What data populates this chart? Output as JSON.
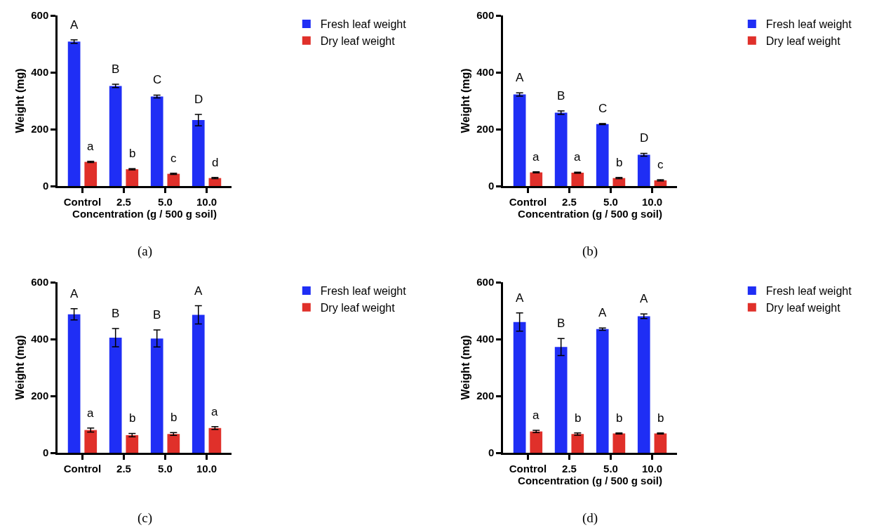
{
  "chart_data": [
    {
      "type": "bar",
      "categories": [
        "Control",
        "2.5",
        "5.0",
        "10.0"
      ],
      "xlabel": "Concentration (g / 500 g soil)",
      "ylabel": "Weight (mg)",
      "ylim": [
        0,
        600
      ],
      "yticks": [
        0,
        200,
        400,
        600
      ],
      "grid": false,
      "legend": "top right",
      "series": [
        {
          "name": "Fresh leaf weight",
          "color": "#1f2ef5",
          "values": [
            508,
            352,
            315,
            232
          ],
          "errors": [
            6,
            6,
            5,
            20
          ]
        },
        {
          "name": "Dry leaf weight",
          "color": "#e0302a",
          "values": [
            85,
            59,
            43,
            28
          ],
          "errors": [
            2,
            2,
            2,
            2
          ]
        }
      ],
      "annotations": [
        {
          "text": "A",
          "x": "Control",
          "y": 508
        },
        {
          "text": "B",
          "x": "2.5",
          "y": 352
        },
        {
          "text": "C",
          "x": "5.0",
          "y": 315
        },
        {
          "text": "D",
          "x": "10.0",
          "y": 232
        },
        {
          "text": "a",
          "x": "Control",
          "y": 85
        },
        {
          "text": "b",
          "x": "2.5",
          "y": 59
        },
        {
          "text": "c",
          "x": "5.0",
          "y": 43
        },
        {
          "text": "d",
          "x": "10.0",
          "y": 28
        },
        "(a)"
      ]
    },
    {
      "type": "bar",
      "categories": [
        "Control",
        "2.5",
        "5.0",
        "10.0"
      ],
      "xlabel": "Concentration (g / 500 g soil)",
      "ylabel": "Weight (mg)",
      "ylim": [
        0,
        600
      ],
      "yticks": [
        0,
        200,
        400,
        600
      ],
      "grid": false,
      "legend": "top right",
      "series": [
        {
          "name": "Fresh leaf weight",
          "color": "#1f2ef5",
          "values": [
            322,
            258,
            218,
            110
          ],
          "errors": [
            6,
            6,
            2,
            5
          ]
        },
        {
          "name": "Dry leaf weight",
          "color": "#e0302a",
          "values": [
            48,
            47,
            28,
            20
          ],
          "errors": [
            2,
            2,
            2,
            2
          ]
        }
      ],
      "annotations": [
        {
          "text": "A",
          "x": "Control",
          "y": 322
        },
        {
          "text": "B",
          "x": "2.5",
          "y": 258
        },
        {
          "text": "C",
          "x": "5.0",
          "y": 218
        },
        {
          "text": "D",
          "x": "10.0",
          "y": 110
        },
        {
          "text": "a",
          "x": "Control",
          "y": 48
        },
        {
          "text": "a",
          "x": "2.5",
          "y": 47
        },
        {
          "text": "b",
          "x": "5.0",
          "y": 28
        },
        {
          "text": "c",
          "x": "10.0",
          "y": 20
        },
        "(b)"
      ]
    },
    {
      "type": "bar",
      "categories": [
        "Control",
        "2.5",
        "5.0",
        "10.0"
      ],
      "ylabel": "Weight (mg)",
      "ylim": [
        0,
        600
      ],
      "yticks": [
        0,
        200,
        400,
        600
      ],
      "grid": false,
      "legend": "top right",
      "series": [
        {
          "name": "Fresh leaf weight",
          "color": "#1f2ef5",
          "values": [
            487,
            405,
            402,
            485
          ],
          "errors": [
            20,
            32,
            30,
            32
          ]
        },
        {
          "name": "Dry leaf weight",
          "color": "#e0302a",
          "values": [
            80,
            62,
            66,
            87
          ],
          "errors": [
            7,
            6,
            5,
            5
          ]
        }
      ],
      "annotations": [
        {
          "text": "A",
          "x": "Control",
          "y": 487
        },
        {
          "text": "B",
          "x": "2.5",
          "y": 405
        },
        {
          "text": "B",
          "x": "5.0",
          "y": 402
        },
        {
          "text": "A",
          "x": "10.0",
          "y": 485
        },
        {
          "text": "a",
          "x": "Control",
          "y": 80
        },
        {
          "text": "b",
          "x": "2.5",
          "y": 62
        },
        {
          "text": "b",
          "x": "5.0",
          "y": 66
        },
        {
          "text": "a",
          "x": "10.0",
          "y": 87
        },
        "(c)"
      ]
    },
    {
      "type": "bar",
      "categories": [
        "Control",
        "2.5",
        "5.0",
        "10.0"
      ],
      "xlabel": "Concentration (g / 500 g soil)",
      "ylabel": "Weight (mg)",
      "ylim": [
        0,
        600
      ],
      "yticks": [
        0,
        200,
        400,
        600
      ],
      "grid": false,
      "legend": "top right",
      "series": [
        {
          "name": "Fresh leaf weight",
          "color": "#1f2ef5",
          "values": [
            460,
            372,
            435,
            480
          ],
          "errors": [
            32,
            30,
            4,
            8
          ]
        },
        {
          "name": "Dry leaf weight",
          "color": "#e0302a",
          "values": [
            75,
            66,
            68,
            68
          ],
          "errors": [
            4,
            4,
            2,
            2
          ]
        }
      ],
      "annotations": [
        {
          "text": "A",
          "x": "Control",
          "y": 460
        },
        {
          "text": "B",
          "x": "2.5",
          "y": 372
        },
        {
          "text": "A",
          "x": "5.0",
          "y": 435
        },
        {
          "text": "A",
          "x": "10.0",
          "y": 480
        },
        {
          "text": "a",
          "x": "Control",
          "y": 75
        },
        {
          "text": "b",
          "x": "2.5",
          "y": 66
        },
        {
          "text": "b",
          "x": "5.0",
          "y": 68
        },
        {
          "text": "b",
          "x": "10.0",
          "y": 68
        },
        "(d)"
      ]
    }
  ]
}
